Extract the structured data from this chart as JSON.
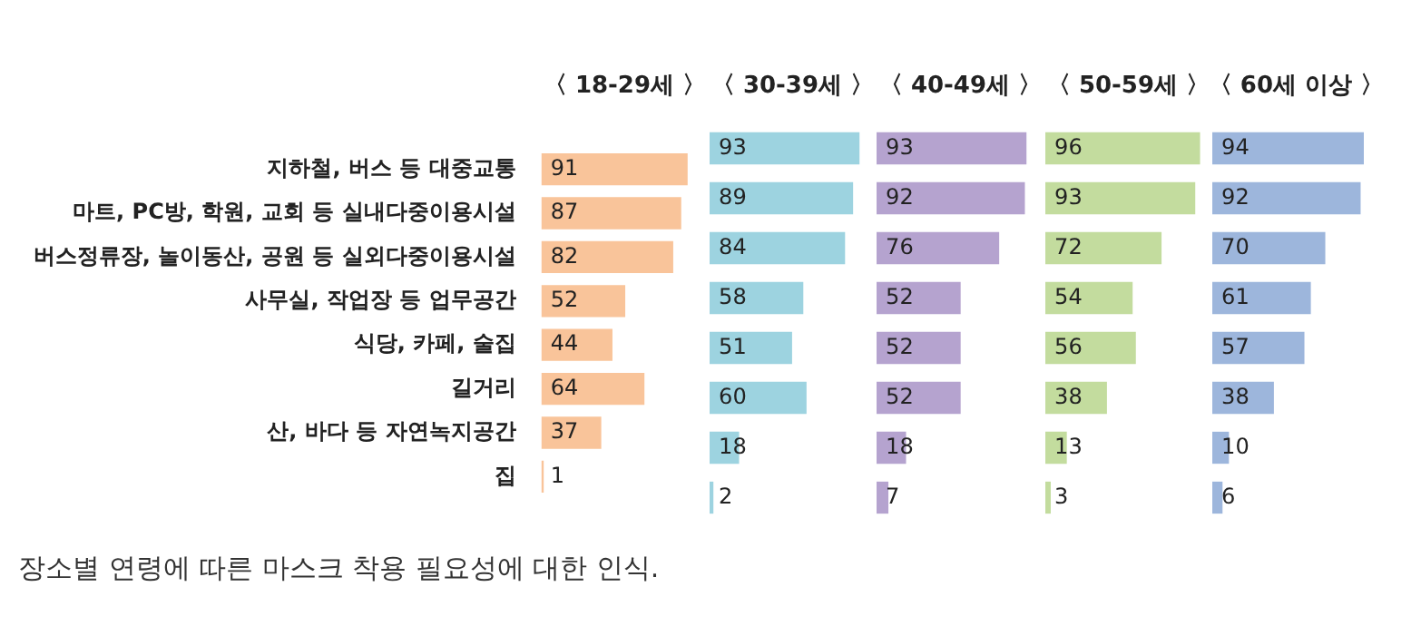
{
  "chart_data": [
    {
      "type": "bar",
      "orientation": "horizontal",
      "title": "〈 18-29세 〉",
      "categories": [
        "지하철, 버스 등 대중교통",
        "마트, PC방, 학원, 교회 등 실내다중이용시설",
        "버스정류장, 놀이동산, 공원 등 실외다중이용시설",
        "사무실, 작업장 등 업무공간",
        "식당, 카페, 술집",
        "길거리",
        "산, 바다 등 자연녹지공간",
        "집"
      ],
      "values": [
        91,
        87,
        82,
        52,
        44,
        64,
        37,
        1
      ],
      "color": "#f9c49a",
      "data_labels": true,
      "tick_labels": "y",
      "annotations": [
        "장소별 연령에 따른 마스크 착용 필요성에 대한 인식."
      ]
    },
    {
      "type": "bar",
      "orientation": "horizontal",
      "title": "〈 30-39세 〉",
      "categories": [
        null,
        null,
        null,
        null,
        null,
        null,
        null,
        null
      ],
      "values": [
        93,
        89,
        84,
        58,
        51,
        60,
        18,
        2
      ],
      "color": "#9dd3e0",
      "data_labels": true,
      "tick_labels": false
    },
    {
      "type": "bar",
      "orientation": "horizontal",
      "title": "〈 40-49세 〉",
      "categories": [
        null,
        null,
        null,
        null,
        null,
        null,
        null,
        null
      ],
      "values": [
        93,
        92,
        76,
        52,
        52,
        52,
        18,
        7
      ],
      "color": "#b5a3cf",
      "data_labels": true,
      "tick_labels": false
    },
    {
      "type": "bar",
      "orientation": "horizontal",
      "title": "〈 50-59세 〉",
      "categories": [
        null,
        null,
        null,
        null,
        null,
        null,
        null,
        null
      ],
      "values": [
        96,
        93,
        72,
        54,
        56,
        38,
        13,
        3
      ],
      "color": "#c3dc9e",
      "data_labels": true,
      "tick_labels": false
    },
    {
      "type": "bar",
      "orientation": "horizontal",
      "title": "〈 60세 이상 〉",
      "categories": [
        null,
        null,
        null,
        null,
        null,
        null,
        null,
        null
      ],
      "values": [
        94,
        92,
        70,
        61,
        57,
        38,
        10,
        6
      ],
      "color": "#9db6dc",
      "data_labels": true,
      "tick_labels": false
    }
  ]
}
